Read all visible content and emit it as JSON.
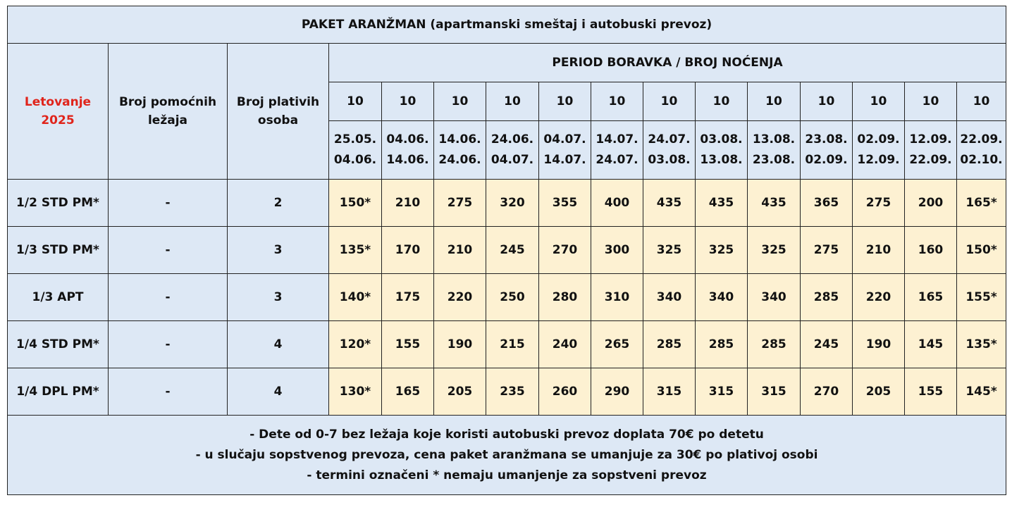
{
  "table": {
    "title": "PAKET ARANŽMAN (apartmanski smeštaj i autobuski prevoz)",
    "season_line1": "Letovanje",
    "season_line2": "2025",
    "col_extra_beds_line1": "Broj pomoćnih",
    "col_extra_beds_line2": "ležaja",
    "col_paying_line1": "Broj plativih",
    "col_paying_line2": "osoba",
    "period_header": "PERIOD BORAVKA / BROJ NOĆENJA",
    "nights": [
      "10",
      "10",
      "10",
      "10",
      "10",
      "10",
      "10",
      "10",
      "10",
      "10",
      "10",
      "10",
      "10"
    ],
    "periods": [
      {
        "start": "25.05.",
        "end": "04.06."
      },
      {
        "start": "04.06.",
        "end": "14.06."
      },
      {
        "start": "14.06.",
        "end": "24.06."
      },
      {
        "start": "24.06.",
        "end": "04.07."
      },
      {
        "start": "04.07.",
        "end": "14.07."
      },
      {
        "start": "14.07.",
        "end": "24.07."
      },
      {
        "start": "24.07.",
        "end": "03.08."
      },
      {
        "start": "03.08.",
        "end": "13.08."
      },
      {
        "start": "13.08.",
        "end": "23.08."
      },
      {
        "start": "23.08.",
        "end": "02.09."
      },
      {
        "start": "02.09.",
        "end": "12.09."
      },
      {
        "start": "12.09.",
        "end": "22.09."
      },
      {
        "start": "22.09.",
        "end": "02.10."
      }
    ],
    "rows": [
      {
        "unit": "1/2 STD PM*",
        "extra_beds": "-",
        "paying": "2",
        "prices": [
          "150*",
          "210",
          "275",
          "320",
          "355",
          "400",
          "435",
          "435",
          "435",
          "365",
          "275",
          "200",
          "165*"
        ]
      },
      {
        "unit": "1/3 STD PM*",
        "extra_beds": "-",
        "paying": "3",
        "prices": [
          "135*",
          "170",
          "210",
          "245",
          "270",
          "300",
          "325",
          "325",
          "325",
          "275",
          "210",
          "160",
          "150*"
        ]
      },
      {
        "unit": "1/3 APT",
        "extra_beds": "-",
        "paying": "3",
        "prices": [
          "140*",
          "175",
          "220",
          "250",
          "280",
          "310",
          "340",
          "340",
          "340",
          "285",
          "220",
          "165",
          "155*"
        ]
      },
      {
        "unit": "1/4 STD PM*",
        "extra_beds": "-",
        "paying": "4",
        "prices": [
          "120*",
          "155",
          "190",
          "215",
          "240",
          "265",
          "285",
          "285",
          "285",
          "245",
          "190",
          "145",
          "135*"
        ]
      },
      {
        "unit": "1/4 DPL PM*",
        "extra_beds": "-",
        "paying": "4",
        "prices": [
          "130*",
          "165",
          "205",
          "235",
          "260",
          "290",
          "315",
          "315",
          "315",
          "270",
          "205",
          "155",
          "145*"
        ]
      }
    ],
    "notes": [
      "- Dete od 0-7 bez ležaja koje koristi autobuski prevoz doplata 70€ po detetu",
      "- u slučaju sopstvenog prevoza, cena paket aranžmana se umanjuje za 30€ po plativoj osobi",
      "- termini označeni * nemaju umanjenje za sopstveni prevoz"
    ],
    "colors": {
      "header_bg": "#dde8f5",
      "price_bg": "#fdf1d2",
      "season_text": "#e0241b"
    }
  }
}
